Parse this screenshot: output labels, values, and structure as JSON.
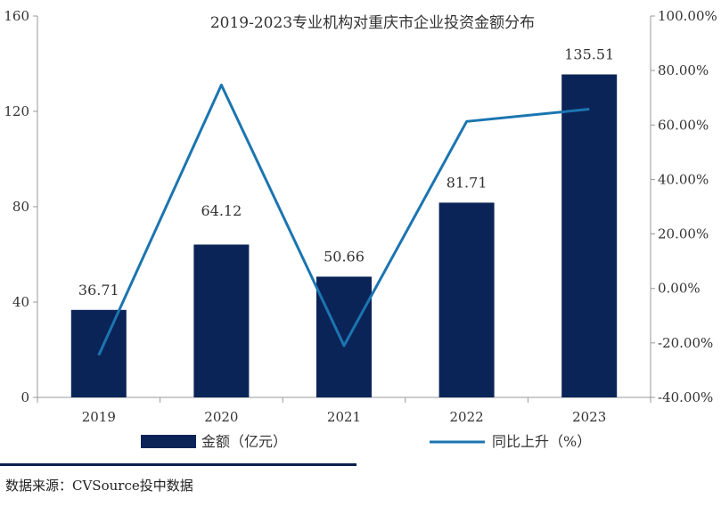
{
  "chart_data": {
    "type": "bar+line",
    "title": "2019-2023专业机构对重庆市企业投资金额分布",
    "categories": [
      "2019",
      "2020",
      "2021",
      "2022",
      "2023"
    ],
    "series": [
      {
        "name": "金额（亿元）",
        "type": "bar",
        "axis": "left",
        "values": [
          36.71,
          64.12,
          50.66,
          81.71,
          135.51
        ],
        "data_labels": [
          "36.71",
          "64.12",
          "50.66",
          "81.71",
          "135.51"
        ],
        "color": "#0b2458"
      },
      {
        "name": "同比上升（%）",
        "type": "line",
        "axis": "right",
        "values": [
          -24.5,
          74.7,
          -21.0,
          61.3,
          65.8
        ],
        "color": "#1b75b0"
      }
    ],
    "y_left": {
      "range": [
        0,
        160
      ],
      "ticks": [
        0,
        40,
        80,
        120,
        160
      ],
      "tick_labels": [
        "0",
        "40",
        "80",
        "120",
        "160"
      ]
    },
    "y_right": {
      "range": [
        -40,
        100
      ],
      "ticks": [
        -40,
        -20,
        0,
        20,
        40,
        60,
        80,
        100
      ],
      "tick_labels": [
        "-40.00%",
        "-20.00%",
        "0.00%",
        "20.00%",
        "40.00%",
        "60.00%",
        "80.00%",
        "100.00%"
      ]
    },
    "legend_position": "bottom",
    "grid": false
  },
  "source": "数据来源：CVSource投中数据"
}
